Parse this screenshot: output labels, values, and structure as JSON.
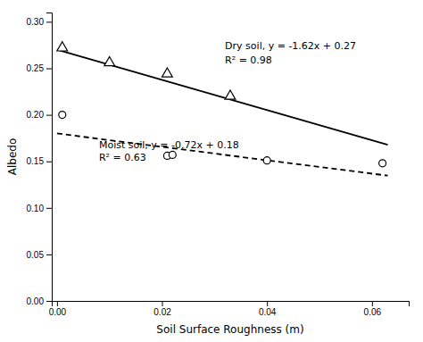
{
  "chart_data": {
    "type": "scatter",
    "xlabel": "Soil Surface Roughness (m)",
    "ylabel": "Albedo",
    "series": [
      {
        "type": "line",
        "line_style": "solid",
        "color": "#000000",
        "x": [
          0.0,
          0.063
        ],
        "values": [
          0.27,
          0.16794
        ]
      },
      {
        "type": "line",
        "line_style": "dashed",
        "color": "#000000",
        "x": [
          0.0,
          0.063
        ],
        "values": [
          0.18,
          0.13464
        ]
      },
      {
        "type": "scatter",
        "marker": "triangle",
        "color": "#000000",
        "x": [
          0.001,
          0.01,
          0.021,
          0.033
        ],
        "values": [
          0.272,
          0.256,
          0.244,
          0.22
        ]
      },
      {
        "type": "scatter",
        "marker": "circle",
        "color": "#000000",
        "x": [
          0.001,
          0.021,
          0.022,
          0.04,
          0.062
        ],
        "values": [
          0.2,
          0.156,
          0.157,
          0.151,
          0.148
        ]
      }
    ],
    "annotations": [
      {
        "text": "Dry soil, y = -1.62x + 0.27",
        "x": 0.032,
        "y": 0.278
      },
      {
        "text": "R² = 0.98",
        "x": 0.032,
        "y": 0.263
      },
      {
        "text": "Moist soil, y = -0.72x + 0.18",
        "x": 0.008,
        "y": 0.172
      },
      {
        "text": "R² = 0.63",
        "x": 0.008,
        "y": 0.158
      }
    ],
    "xlim": [
      -0.001,
      0.067
    ],
    "ylim": [
      0.0,
      0.31
    ],
    "xticks": [
      {
        "value": 0.0,
        "label": "0.00"
      },
      0.02,
      0.04,
      0.06
    ],
    "yticks": [
      {
        "value": 0.0,
        "label": "0.00"
      },
      0.05,
      {
        "value": 0.1,
        "label": "0.10"
      },
      0.15,
      {
        "value": 0.2,
        "label": "0.20"
      },
      0.25,
      {
        "value": 0.3,
        "label": "0.30"
      }
    ],
    "grid": false
  }
}
